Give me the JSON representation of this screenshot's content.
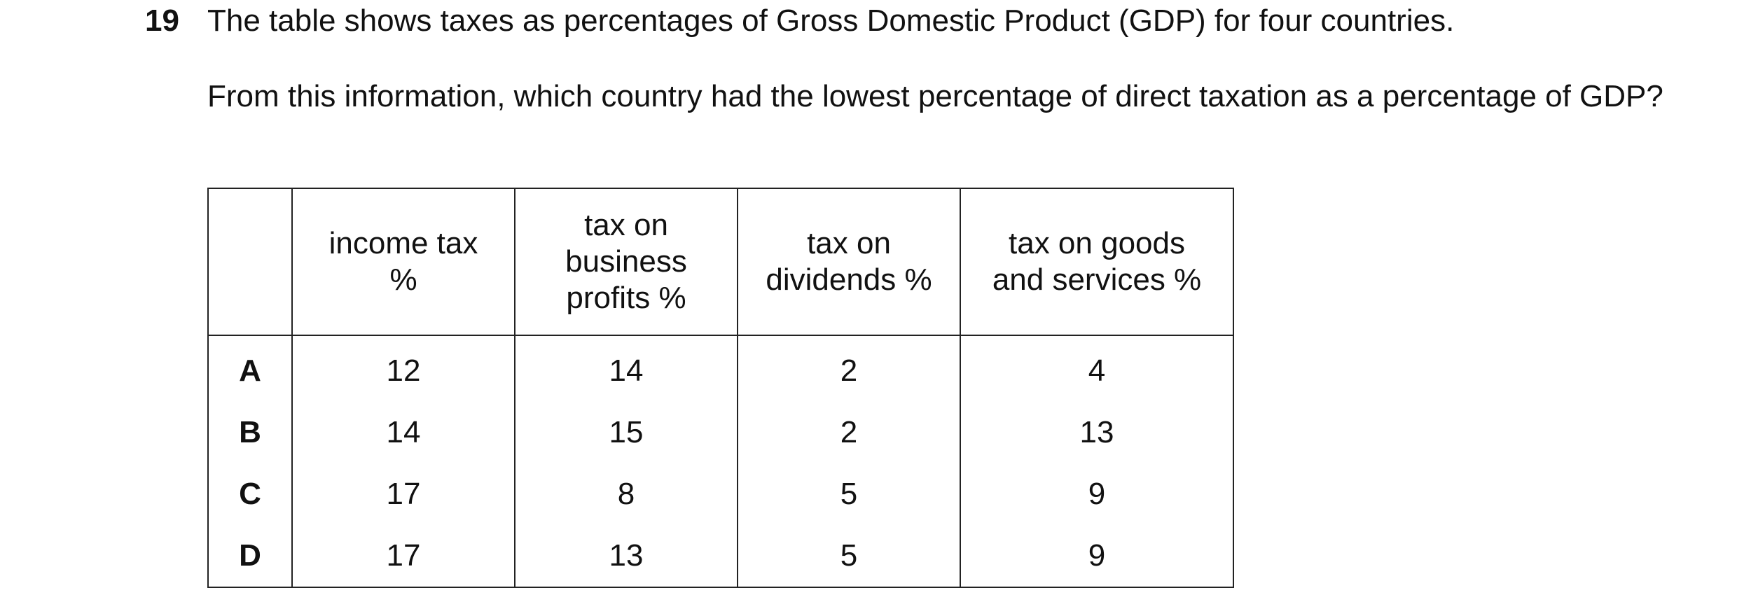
{
  "question": {
    "number": "19",
    "stem": "The table shows taxes as percentages of Gross Domestic Product (GDP) for four countries.",
    "prompt": "From this information, which country had the lowest percentage of direct taxation as a percentage of GDP?"
  },
  "table": {
    "headers": [
      [
        "income tax",
        "%"
      ],
      [
        "tax on",
        "business",
        "profits %"
      ],
      [
        "tax on",
        "dividends %"
      ],
      [
        "tax on goods",
        "and services %"
      ]
    ],
    "rows": [
      {
        "label": "A",
        "values": [
          "12",
          "14",
          "2",
          "4"
        ]
      },
      {
        "label": "B",
        "values": [
          "14",
          "15",
          "2",
          "13"
        ]
      },
      {
        "label": "C",
        "values": [
          "17",
          "8",
          "5",
          "9"
        ]
      },
      {
        "label": "D",
        "values": [
          "17",
          "13",
          "5",
          "9"
        ]
      }
    ]
  }
}
